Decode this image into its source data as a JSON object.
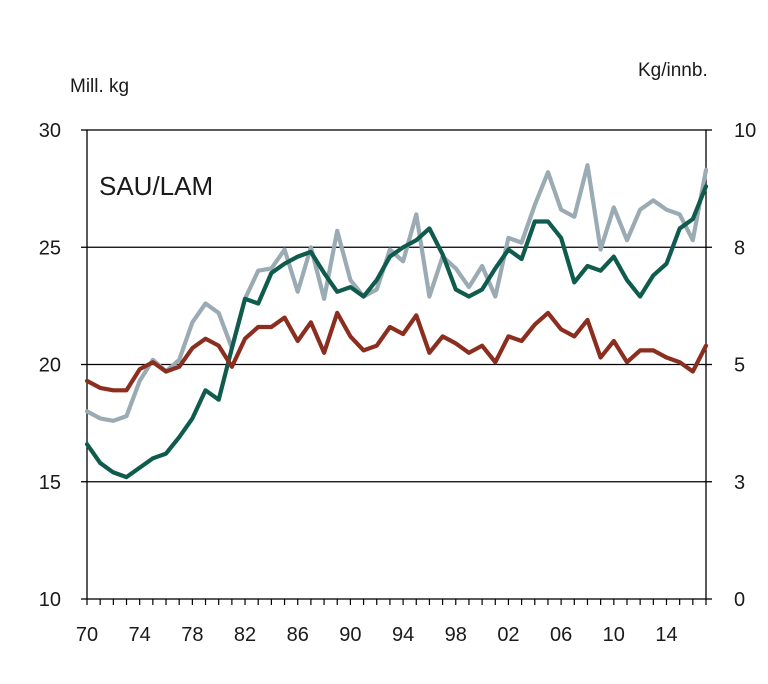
{
  "chart_data": {
    "type": "line",
    "title": "SAU/LAM",
    "y_left_label": "Mill. kg",
    "y_right_label": "Kg/innb.",
    "y_left_lim": [
      10,
      30
    ],
    "y_right_lim": [
      0,
      10
    ],
    "y_left_ticks": [
      "10",
      "15",
      "20",
      "25",
      "30"
    ],
    "y_right_ticks": [
      "0",
      "3",
      "5",
      "8",
      "10"
    ],
    "y_right_tick_values": [
      0,
      2.5,
      5,
      7.5,
      10
    ],
    "x_lim": [
      1970,
      2017
    ],
    "x_ticks": [
      "70",
      "74",
      "78",
      "82",
      "86",
      "90",
      "94",
      "98",
      "02",
      "06",
      "10",
      "14"
    ],
    "x_tick_values": [
      1970,
      1974,
      1978,
      1982,
      1986,
      1990,
      1994,
      1998,
      2002,
      2006,
      2010,
      2014
    ],
    "grid": true,
    "x": [
      1970,
      1971,
      1972,
      1973,
      1974,
      1975,
      1976,
      1977,
      1978,
      1979,
      1980,
      1981,
      1982,
      1983,
      1984,
      1985,
      1986,
      1987,
      1988,
      1989,
      1990,
      1991,
      1992,
      1993,
      1994,
      1995,
      1996,
      1997,
      1998,
      1999,
      2000,
      2001,
      2002,
      2003,
      2004,
      2005,
      2006,
      2007,
      2008,
      2009,
      2010,
      2011,
      2012,
      2013,
      2014,
      2015,
      2016,
      2017
    ],
    "series": [
      {
        "color": "#9aabb3",
        "axis": "left",
        "values": [
          18.0,
          17.7,
          17.6,
          17.8,
          19.3,
          20.2,
          19.7,
          20.2,
          21.8,
          22.6,
          22.2,
          20.7,
          22.8,
          24.0,
          24.1,
          24.9,
          23.1,
          25.0,
          22.8,
          25.7,
          23.6,
          22.9,
          23.2,
          24.9,
          24.4,
          26.4,
          22.9,
          24.6,
          24.1,
          23.3,
          24.2,
          22.9,
          25.4,
          25.2,
          26.8,
          28.2,
          26.6,
          26.3,
          28.5,
          24.9,
          26.7,
          25.3,
          26.6,
          27.0,
          26.6,
          26.4,
          25.3,
          28.3
        ]
      },
      {
        "color": "#0f5b4d",
        "axis": "left",
        "values": [
          16.6,
          15.8,
          15.4,
          15.2,
          15.6,
          16.0,
          16.2,
          16.9,
          17.7,
          18.9,
          18.5,
          20.7,
          22.8,
          22.6,
          23.9,
          24.3,
          24.6,
          24.8,
          23.9,
          23.1,
          23.3,
          22.9,
          23.6,
          24.6,
          25.0,
          25.3,
          25.8,
          24.7,
          23.2,
          22.9,
          23.2,
          24.1,
          24.9,
          24.5,
          26.1,
          26.1,
          25.4,
          23.5,
          24.2,
          24.0,
          24.6,
          23.6,
          22.9,
          23.8,
          24.3,
          25.8,
          26.2,
          27.6
        ]
      },
      {
        "color": "#8b2e1f",
        "axis": "left",
        "values": [
          19.3,
          19.0,
          18.9,
          18.9,
          19.8,
          20.1,
          19.7,
          19.9,
          20.7,
          21.1,
          20.8,
          19.9,
          21.1,
          21.6,
          21.6,
          22.0,
          21.0,
          21.8,
          20.5,
          22.2,
          21.2,
          20.6,
          20.8,
          21.6,
          21.3,
          22.1,
          20.5,
          21.2,
          20.9,
          20.5,
          20.8,
          20.1,
          21.2,
          21.0,
          21.7,
          22.2,
          21.5,
          21.2,
          21.9,
          20.3,
          21.0,
          20.1,
          20.6,
          20.6,
          20.3,
          20.1,
          19.7,
          20.8
        ]
      }
    ]
  }
}
